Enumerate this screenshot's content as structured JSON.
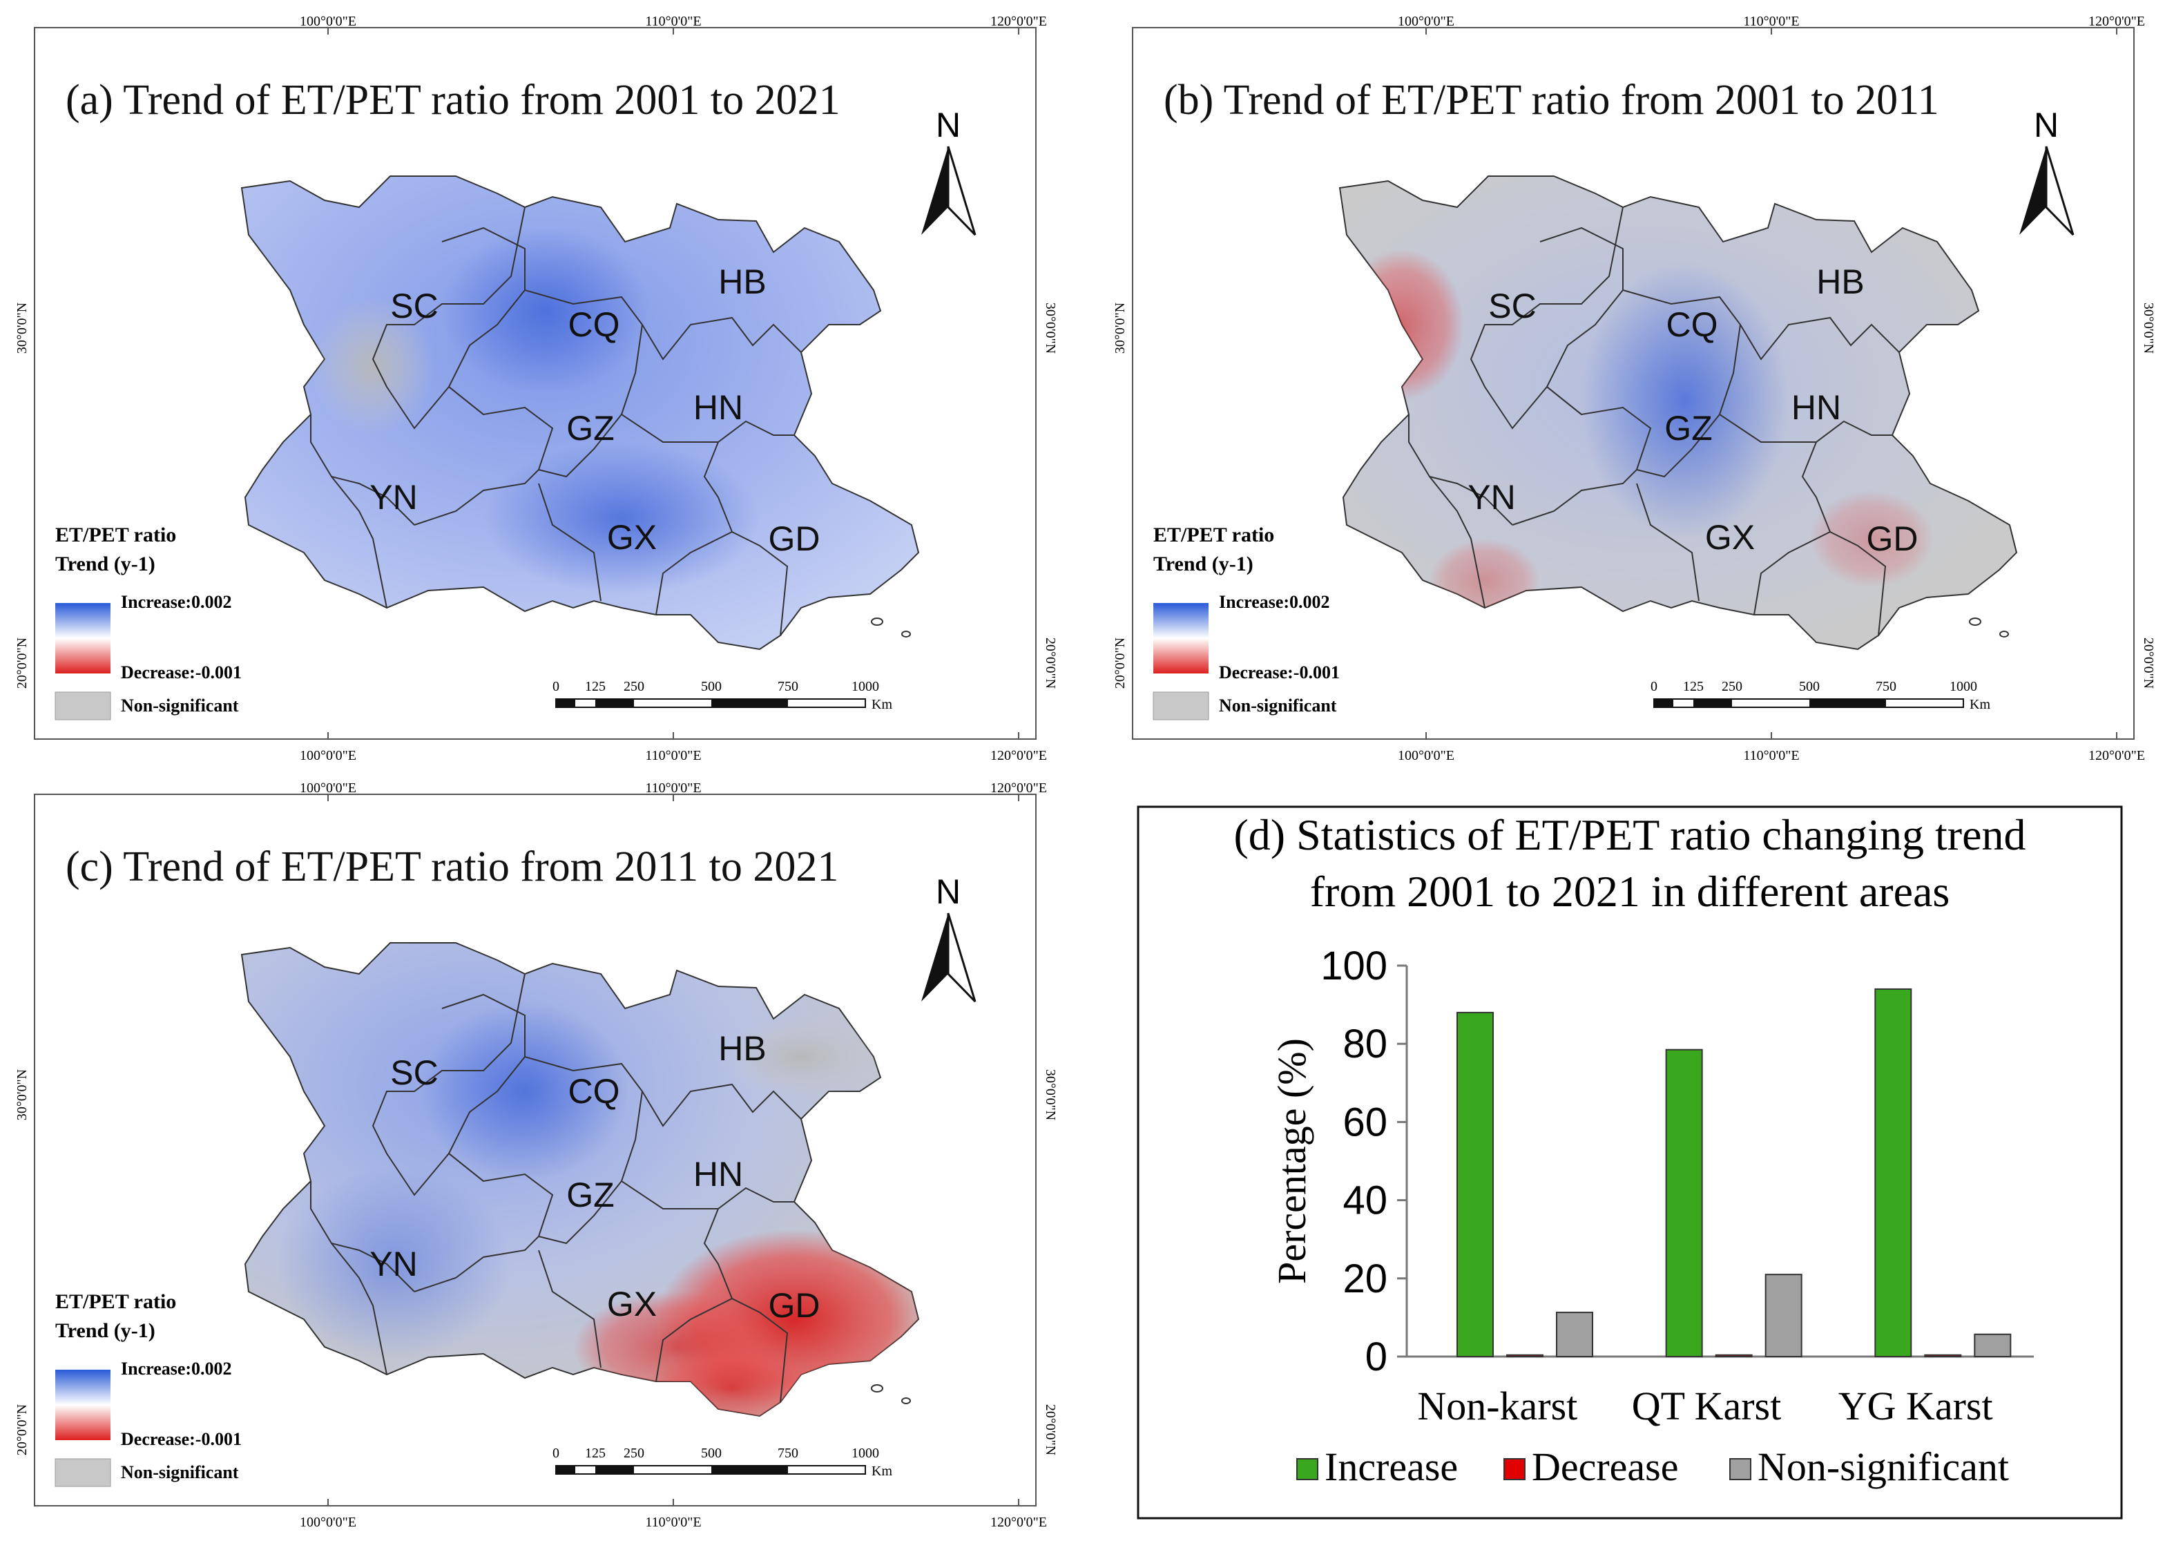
{
  "colors": {
    "increase": "#2a5ad8",
    "decrease": "#dd2020",
    "nonsig": "#c8c8c8",
    "bar_increase": "#3aa81e",
    "bar_decrease": "#e00000",
    "bar_nonsig": "#a0a0a0"
  },
  "maps": [
    {
      "title": "(a) Trend of ET/PET ratio from 2001 to 2021",
      "north": "N",
      "top_ticks": [
        "100°0'0\"E",
        "110°0'0\"E",
        "120°0'0\"E"
      ],
      "bottom_ticks": [
        "100°0'0\"E",
        "110°0'0\"E",
        "120°0'0\"E"
      ],
      "left_ticks": [
        "30°0'0\"N",
        "20°0'0\"N"
      ],
      "right_ticks": [
        "30°0'0\"N",
        "20°0'0\"N"
      ],
      "legend": {
        "title1": "ET/PET ratio",
        "title2": "Trend (y-1)",
        "increase": "Increase:0.002",
        "decrease": "Decrease:-0.001",
        "nonsig": "Non-significant"
      },
      "scalebar": {
        "labels": [
          "0",
          "125",
          "250",
          "500",
          "750",
          "1000"
        ],
        "unit": "Km"
      },
      "regions": [
        "SC",
        "CQ",
        "HB",
        "GZ",
        "HN",
        "YN",
        "GX",
        "GD"
      ]
    },
    {
      "title": "(b) Trend of ET/PET ratio from 2001 to 2011",
      "north": "N",
      "top_ticks": [
        "100°0'0\"E",
        "110°0'0\"E",
        "120°0'0\"E"
      ],
      "bottom_ticks": [
        "100°0'0\"E",
        "110°0'0\"E",
        "120°0'0\"E"
      ],
      "left_ticks": [
        "30°0'0\"N",
        "20°0'0\"N"
      ],
      "right_ticks": [
        "30°0'0\"N",
        "20°0'0\"N"
      ],
      "legend": {
        "title1": "ET/PET ratio",
        "title2": "Trend (y-1)",
        "increase": "Increase:0.002",
        "decrease": "Decrease:-0.001",
        "nonsig": "Non-significant"
      },
      "scalebar": {
        "labels": [
          "0",
          "125",
          "250",
          "500",
          "750",
          "1000"
        ],
        "unit": "Km"
      },
      "regions": [
        "SC",
        "CQ",
        "HB",
        "GZ",
        "HN",
        "YN",
        "GX",
        "GD"
      ]
    },
    {
      "title": "(c) Trend of ET/PET ratio from 2011 to 2021",
      "north": "N",
      "top_ticks": [
        "100°0'0\"E",
        "110°0'0\"E",
        "120°0'0\"E"
      ],
      "bottom_ticks": [
        "100°0'0\"E",
        "110°0'0\"E",
        "120°0'0\"E"
      ],
      "left_ticks": [
        "30°0'0\"N",
        "20°0'0\"N"
      ],
      "right_ticks": [
        "30°0'0\"N",
        "20°0'0\"N"
      ],
      "legend": {
        "title1": "ET/PET ratio",
        "title2": "Trend (y-1)",
        "increase": "Increase:0.002",
        "decrease": "Decrease:-0.001",
        "nonsig": "Non-significant"
      },
      "scalebar": {
        "labels": [
          "0",
          "125",
          "250",
          "500",
          "750",
          "1000"
        ],
        "unit": "Km"
      },
      "regions": [
        "SC",
        "CQ",
        "HB",
        "GZ",
        "HN",
        "YN",
        "GX",
        "GD"
      ]
    }
  ],
  "chart_data": {
    "type": "bar",
    "title": "(d) Statistics of ET/PET ratio changing trend from 2001 to 2021 in different areas",
    "title_line1": "(d) Statistics of ET/PET ratio changing trend",
    "title_line2": "from 2001 to 2021 in different areas",
    "xlabel": "",
    "ylabel": "Percentage (%)",
    "ylim": [
      0,
      100
    ],
    "yticks": [
      "0",
      "20",
      "40",
      "60",
      "80",
      "100"
    ],
    "categories": [
      "Non-karst",
      "QT Karst",
      "YG Karst"
    ],
    "series": [
      {
        "name": "Increase",
        "values": [
          88,
          78.5,
          94
        ]
      },
      {
        "name": "Decrease",
        "values": [
          0.4,
          0.4,
          0.4
        ]
      },
      {
        "name": "Non-significant",
        "values": [
          11.3,
          21,
          5.7
        ]
      }
    ],
    "legend_position": "bottom"
  }
}
